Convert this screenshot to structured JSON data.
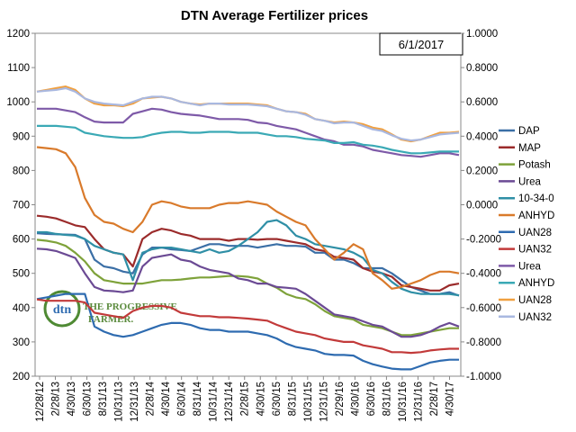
{
  "chart_data": {
    "type": "line",
    "title": "DTN Average Fertilizer prices",
    "date_label": "6/1/2017",
    "logo": {
      "left": "dtn",
      "right_line1": "THE PROGRESSIVE",
      "right_line2": "FARMER."
    },
    "grid": false,
    "legend_position": "right",
    "y_left": {
      "min": 200,
      "max": 1200,
      "ticks": [
        "200",
        "300",
        "400",
        "500",
        "600",
        "700",
        "800",
        "900",
        "1000",
        "1100",
        "1200"
      ]
    },
    "y_right": {
      "min": -1.0,
      "max": 1.0,
      "ticks": [
        "-1.0000",
        "-0.8000",
        "-0.6000",
        "-0.4000",
        "-0.2000",
        "0.0000",
        "0.2000",
        "0.4000",
        "0.6000",
        "0.8000",
        "1.0000"
      ]
    },
    "x_ticks": [
      "12/28/12",
      "2/28/13",
      "4/30/13",
      "6/30/13",
      "8/31/13",
      "10/31/13",
      "12/31/13",
      "2/28/14",
      "4/30/14",
      "6/30/14",
      "8/31/14",
      "10/31/14",
      "12/31/14",
      "2/28/15",
      "4/30/15",
      "6/30/15",
      "8/31/15",
      "10/31/15",
      "12/31/15",
      "2/29/16",
      "4/30/16",
      "6/30/16",
      "8/31/16",
      "10/31/16",
      "12/31/16",
      "2/28/17",
      "4/30/17"
    ],
    "series": [
      {
        "name": "DAP",
        "color": "#3b6fa6",
        "axis": "left",
        "values": [
          617,
          615,
          614,
          613,
          612,
          600,
          540,
          520,
          515,
          505,
          500,
          555,
          575,
          575,
          570,
          568,
          565,
          575,
          585,
          585,
          580,
          580,
          580,
          575,
          580,
          585,
          580,
          580,
          578,
          560,
          560,
          540,
          540,
          530,
          515,
          515,
          515,
          500,
          480,
          460,
          450,
          440,
          440,
          445,
          435
        ]
      },
      {
        "name": "MAP",
        "color": "#9b2b2b",
        "axis": "left",
        "values": [
          668,
          665,
          660,
          650,
          640,
          635,
          600,
          570,
          560,
          555,
          520,
          600,
          620,
          630,
          625,
          615,
          610,
          600,
          600,
          600,
          595,
          600,
          600,
          598,
          600,
          600,
          595,
          590,
          585,
          570,
          565,
          548,
          545,
          540,
          515,
          505,
          500,
          490,
          465,
          460,
          455,
          450,
          450,
          465,
          470
        ]
      },
      {
        "name": "Potash",
        "color": "#7ea23a",
        "axis": "left",
        "values": [
          598,
          595,
          590,
          580,
          560,
          535,
          500,
          480,
          475,
          470,
          470,
          470,
          475,
          480,
          480,
          482,
          485,
          488,
          488,
          490,
          492,
          492,
          490,
          485,
          470,
          458,
          440,
          430,
          425,
          410,
          390,
          375,
          370,
          365,
          350,
          345,
          340,
          330,
          320,
          320,
          325,
          330,
          335,
          340,
          340
        ]
      },
      {
        "name": "Urea",
        "color": "#6b4a94",
        "axis": "left",
        "values": [
          572,
          570,
          565,
          555,
          545,
          500,
          460,
          450,
          448,
          445,
          450,
          520,
          545,
          550,
          555,
          540,
          535,
          520,
          510,
          505,
          500,
          485,
          480,
          470,
          470,
          460,
          458,
          455,
          440,
          420,
          400,
          380,
          375,
          370,
          360,
          350,
          345,
          330,
          315,
          315,
          320,
          330,
          345,
          355,
          345
        ]
      },
      {
        "name": "10-34-0",
        "color": "#2f8fa6",
        "axis": "left",
        "values": [
          620,
          620,
          615,
          612,
          610,
          600,
          580,
          570,
          560,
          555,
          480,
          560,
          570,
          575,
          575,
          570,
          565,
          560,
          570,
          560,
          565,
          580,
          600,
          620,
          650,
          655,
          640,
          610,
          600,
          585,
          580,
          575,
          570,
          560,
          545,
          510,
          500,
          475,
          455,
          445,
          440,
          440,
          440,
          440,
          436
        ]
      },
      {
        "name": "ANHYD",
        "color": "#d97a2b",
        "axis": "left",
        "values": [
          868,
          865,
          862,
          850,
          810,
          720,
          670,
          650,
          645,
          630,
          620,
          650,
          700,
          710,
          705,
          695,
          690,
          690,
          690,
          700,
          705,
          705,
          710,
          705,
          700,
          680,
          665,
          650,
          640,
          600,
          570,
          540,
          560,
          585,
          570,
          500,
          480,
          455,
          460,
          470,
          480,
          495,
          505,
          505,
          500
        ]
      },
      {
        "name": "UAN28",
        "color": "#2e6bb0",
        "axis": "left",
        "values": [
          425,
          430,
          435,
          440,
          440,
          440,
          345,
          330,
          320,
          315,
          320,
          330,
          340,
          350,
          355,
          355,
          350,
          340,
          335,
          335,
          330,
          330,
          330,
          325,
          320,
          310,
          295,
          285,
          280,
          275,
          265,
          262,
          262,
          260,
          245,
          235,
          228,
          222,
          220,
          220,
          230,
          240,
          245,
          248,
          248
        ]
      },
      {
        "name": "UAN32",
        "color": "#c23a3a",
        "axis": "left",
        "values": [
          424,
          420,
          420,
          420,
          420,
          415,
          385,
          380,
          375,
          370,
          390,
          400,
          405,
          405,
          400,
          385,
          380,
          375,
          375,
          372,
          372,
          370,
          368,
          365,
          362,
          350,
          340,
          330,
          325,
          320,
          310,
          305,
          300,
          300,
          290,
          285,
          280,
          270,
          270,
          268,
          270,
          275,
          278,
          280,
          280
        ]
      },
      {
        "name": "Urea",
        "color": "#7e5aa8",
        "axis": "right",
        "values": [
          0.56,
          0.56,
          0.56,
          0.55,
          0.54,
          0.51,
          0.485,
          0.48,
          0.48,
          0.48,
          0.53,
          0.545,
          0.56,
          0.555,
          0.54,
          0.53,
          0.525,
          0.52,
          0.51,
          0.5,
          0.5,
          0.5,
          0.495,
          0.48,
          0.475,
          0.46,
          0.45,
          0.44,
          0.42,
          0.4,
          0.38,
          0.37,
          0.35,
          0.35,
          0.34,
          0.32,
          0.31,
          0.3,
          0.29,
          0.285,
          0.28,
          0.29,
          0.3,
          0.3,
          0.29
        ]
      },
      {
        "name": "ANHYD",
        "color": "#3aa9b5",
        "axis": "right",
        "values": [
          0.46,
          0.46,
          0.46,
          0.455,
          0.45,
          0.42,
          0.41,
          0.4,
          0.395,
          0.39,
          0.39,
          0.395,
          0.41,
          0.42,
          0.425,
          0.425,
          0.42,
          0.42,
          0.425,
          0.425,
          0.425,
          0.42,
          0.42,
          0.42,
          0.41,
          0.4,
          0.4,
          0.395,
          0.385,
          0.38,
          0.375,
          0.36,
          0.36,
          0.365,
          0.35,
          0.345,
          0.335,
          0.32,
          0.31,
          0.3,
          0.3,
          0.305,
          0.31,
          0.31,
          0.31
        ]
      },
      {
        "name": "UAN28",
        "color": "#f0a040",
        "axis": "right",
        "values": [
          0.66,
          0.67,
          0.68,
          0.69,
          0.67,
          0.62,
          0.59,
          0.58,
          0.58,
          0.575,
          0.59,
          0.62,
          0.625,
          0.63,
          0.62,
          0.6,
          0.59,
          0.585,
          0.59,
          0.59,
          0.59,
          0.59,
          0.59,
          0.585,
          0.58,
          0.56,
          0.545,
          0.54,
          0.53,
          0.5,
          0.49,
          0.48,
          0.485,
          0.48,
          0.47,
          0.45,
          0.44,
          0.41,
          0.38,
          0.37,
          0.38,
          0.4,
          0.42,
          0.42,
          0.425
        ]
      },
      {
        "name": "UAN32",
        "color": "#a9b8e0",
        "axis": "right",
        "values": [
          0.66,
          0.665,
          0.67,
          0.68,
          0.66,
          0.62,
          0.6,
          0.59,
          0.585,
          0.58,
          0.6,
          0.62,
          0.63,
          0.63,
          0.62,
          0.6,
          0.59,
          0.58,
          0.59,
          0.59,
          0.585,
          0.585,
          0.585,
          0.58,
          0.575,
          0.56,
          0.545,
          0.54,
          0.525,
          0.5,
          0.49,
          0.475,
          0.48,
          0.48,
          0.46,
          0.44,
          0.43,
          0.405,
          0.385,
          0.375,
          0.38,
          0.395,
          0.41,
          0.415,
          0.42
        ]
      }
    ]
  }
}
